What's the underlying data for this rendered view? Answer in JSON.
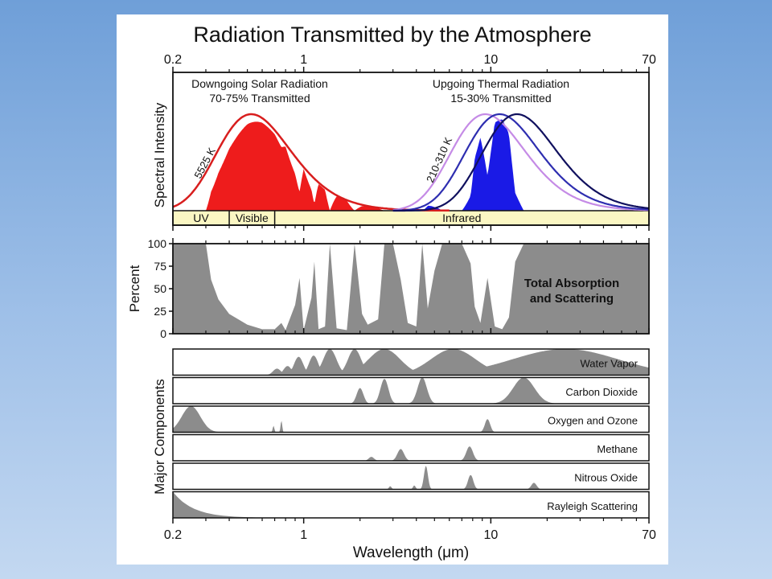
{
  "title": "Radiation Transmitted by the Atmosphere",
  "colors": {
    "solar_fill": "#ee1c1c",
    "solar_curve": "#d81e1e",
    "thermal_fill": "#1a1ae6",
    "thermal_curves": [
      "#c58be6",
      "#2e2eb0",
      "#10105e"
    ],
    "absorption_fill": "#8c8c8c",
    "band_fill": "#fbf7c3",
    "frame_bg": "#ffffff"
  },
  "chart_data": {
    "type": "area",
    "title": "Radiation Transmitted by the Atmosphere",
    "xlabel": "Wavelength (μm)",
    "xscale": "log",
    "xlim": [
      0.2,
      70
    ],
    "xticks": [
      {
        "value": 0.2,
        "label": "0.2"
      },
      {
        "value": 1,
        "label": "1"
      },
      {
        "value": 10,
        "label": "10"
      },
      {
        "value": 70,
        "label": "70"
      }
    ],
    "spectral_panel": {
      "ylabel": "Spectral Intensity",
      "solar": {
        "label_line1": "Downgoing Solar Radiation",
        "label_line2": "70-75% Transmitted",
        "curve_label": "5525 K",
        "temperature_K": 5525
      },
      "thermal": {
        "label_line1": "Upgoing Thermal Radiation",
        "label_line2": "15-30% Transmitted",
        "curve_label": "210-310 K",
        "temperatures_K": [
          310,
          260,
          210
        ]
      },
      "bands": [
        {
          "label": "UV",
          "from": 0.2,
          "to": 0.4
        },
        {
          "label": "Visible",
          "from": 0.4,
          "to": 0.7
        },
        {
          "label": "Infrared",
          "from": 0.7,
          "to": 70
        }
      ]
    },
    "absorption_panel": {
      "ylabel": "Percent",
      "ylim": [
        0,
        100
      ],
      "yticks": [
        0,
        25,
        50,
        75,
        100
      ],
      "label_line1": "Total Absorption",
      "label_line2": "and Scattering",
      "series": [
        {
          "x": 0.2,
          "y": 100
        },
        {
          "x": 0.3,
          "y": 100
        },
        {
          "x": 0.32,
          "y": 60
        },
        {
          "x": 0.35,
          "y": 38
        },
        {
          "x": 0.4,
          "y": 22
        },
        {
          "x": 0.5,
          "y": 10
        },
        {
          "x": 0.6,
          "y": 5
        },
        {
          "x": 0.7,
          "y": 5
        },
        {
          "x": 0.76,
          "y": 12
        },
        {
          "x": 0.8,
          "y": 4
        },
        {
          "x": 0.9,
          "y": 32
        },
        {
          "x": 0.95,
          "y": 62
        },
        {
          "x": 1.0,
          "y": 4
        },
        {
          "x": 1.1,
          "y": 40
        },
        {
          "x": 1.14,
          "y": 80
        },
        {
          "x": 1.2,
          "y": 5
        },
        {
          "x": 1.3,
          "y": 8
        },
        {
          "x": 1.38,
          "y": 100
        },
        {
          "x": 1.5,
          "y": 6
        },
        {
          "x": 1.7,
          "y": 4
        },
        {
          "x": 1.87,
          "y": 100
        },
        {
          "x": 2.05,
          "y": 22
        },
        {
          "x": 2.2,
          "y": 10
        },
        {
          "x": 2.5,
          "y": 16
        },
        {
          "x": 2.7,
          "y": 100
        },
        {
          "x": 3.0,
          "y": 100
        },
        {
          "x": 3.3,
          "y": 60
        },
        {
          "x": 3.6,
          "y": 12
        },
        {
          "x": 4.0,
          "y": 8
        },
        {
          "x": 4.3,
          "y": 100
        },
        {
          "x": 4.6,
          "y": 28
        },
        {
          "x": 5.0,
          "y": 70
        },
        {
          "x": 5.5,
          "y": 100
        },
        {
          "x": 7.0,
          "y": 100
        },
        {
          "x": 7.8,
          "y": 78
        },
        {
          "x": 8.2,
          "y": 30
        },
        {
          "x": 8.8,
          "y": 12
        },
        {
          "x": 9.6,
          "y": 62
        },
        {
          "x": 10.5,
          "y": 8
        },
        {
          "x": 11.5,
          "y": 5
        },
        {
          "x": 12.5,
          "y": 18
        },
        {
          "x": 13.5,
          "y": 80
        },
        {
          "x": 15,
          "y": 100
        },
        {
          "x": 70,
          "y": 100
        }
      ]
    },
    "components_panel": {
      "ylabel": "Major Components",
      "series": [
        {
          "name": "Water Vapor",
          "peaks": [
            {
              "x": 0.72,
              "h": 0.25,
              "w": 0.03
            },
            {
              "x": 0.82,
              "h": 0.35,
              "w": 0.03
            },
            {
              "x": 0.94,
              "h": 0.7,
              "w": 0.035
            },
            {
              "x": 1.13,
              "h": 0.75,
              "w": 0.035
            },
            {
              "x": 1.38,
              "h": 1.0,
              "w": 0.05
            },
            {
              "x": 1.87,
              "h": 1.0,
              "w": 0.05
            },
            {
              "x": 2.7,
              "h": 1.0,
              "w": 0.12
            },
            {
              "x": 6.3,
              "h": 1.0,
              "w": 0.17
            },
            {
              "x": 25,
              "h": 1.0,
              "w": 0.4
            }
          ]
        },
        {
          "name": "Carbon Dioxide",
          "peaks": [
            {
              "x": 2.0,
              "h": 0.6,
              "w": 0.025
            },
            {
              "x": 2.7,
              "h": 0.95,
              "w": 0.03
            },
            {
              "x": 4.3,
              "h": 1.0,
              "w": 0.035
            },
            {
              "x": 15,
              "h": 1.0,
              "w": 0.08
            }
          ]
        },
        {
          "name": "Oxygen and Ozone",
          "peaks": [
            {
              "x": 0.25,
              "h": 1.0,
              "w": 0.07
            },
            {
              "x": 0.69,
              "h": 0.25,
              "w": 0.006
            },
            {
              "x": 0.76,
              "h": 0.45,
              "w": 0.006
            },
            {
              "x": 9.6,
              "h": 0.5,
              "w": 0.02
            }
          ]
        },
        {
          "name": "Methane",
          "peaks": [
            {
              "x": 2.3,
              "h": 0.15,
              "w": 0.02
            },
            {
              "x": 3.3,
              "h": 0.45,
              "w": 0.025
            },
            {
              "x": 7.7,
              "h": 0.55,
              "w": 0.025
            }
          ]
        },
        {
          "name": "Nitrous Oxide",
          "peaks": [
            {
              "x": 2.9,
              "h": 0.12,
              "w": 0.01
            },
            {
              "x": 3.9,
              "h": 0.15,
              "w": 0.01
            },
            {
              "x": 4.5,
              "h": 0.9,
              "w": 0.015
            },
            {
              "x": 7.8,
              "h": 0.55,
              "w": 0.02
            },
            {
              "x": 17,
              "h": 0.25,
              "w": 0.02
            }
          ]
        },
        {
          "name": "Rayleigh Scattering",
          "peaks": []
        }
      ]
    }
  }
}
